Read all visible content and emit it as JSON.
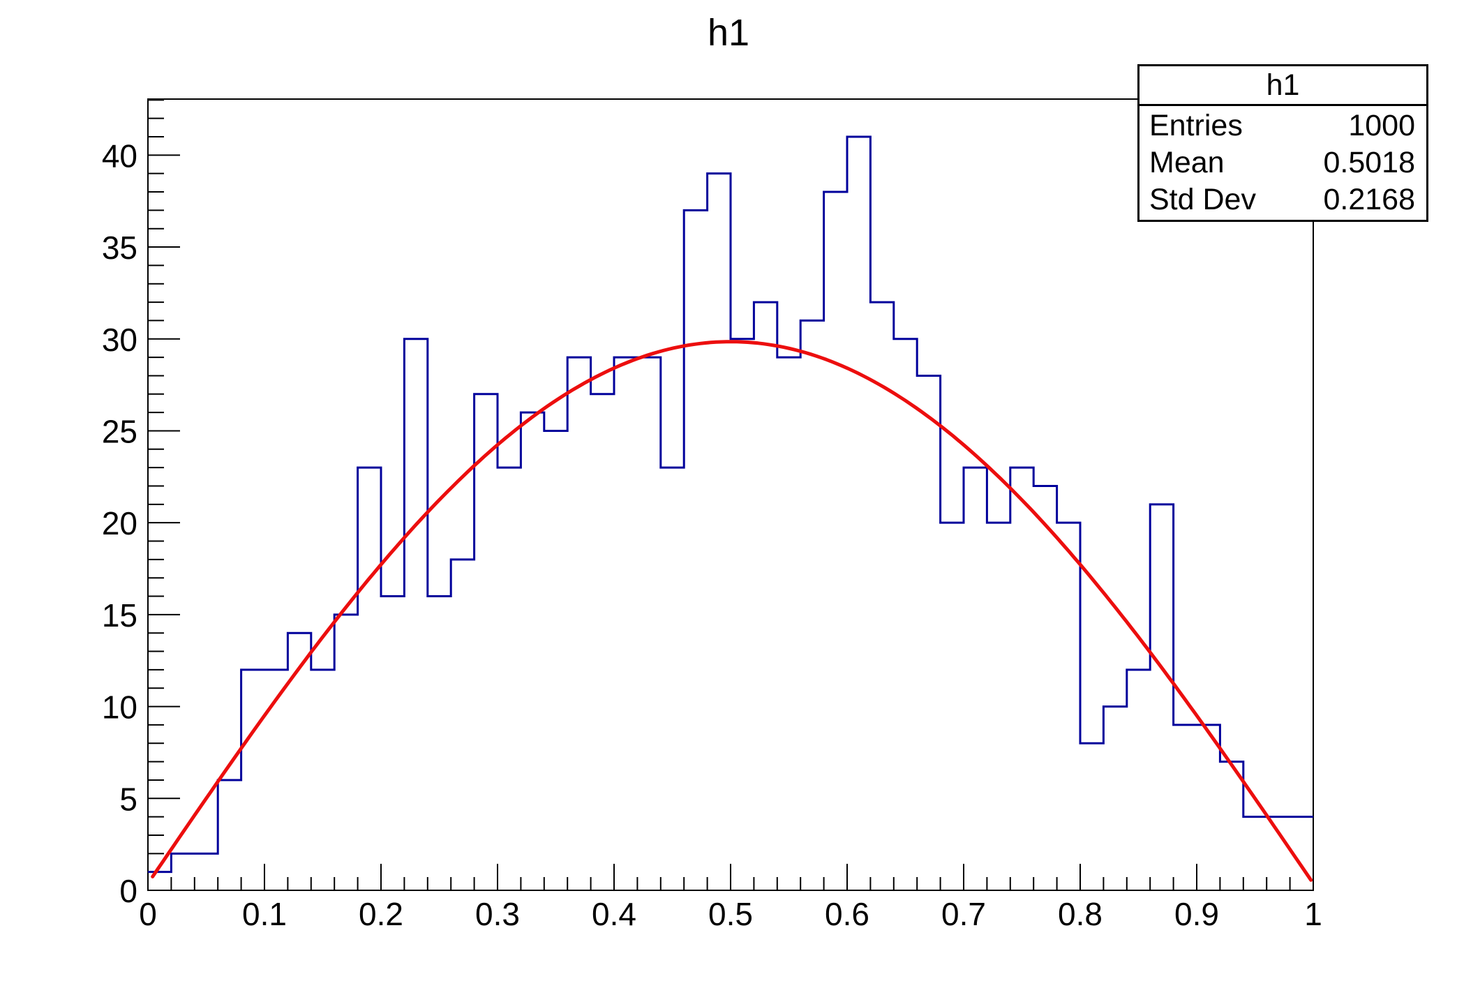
{
  "title": "h1",
  "stats": {
    "title": "h1",
    "rows": [
      {
        "label": "Entries",
        "value": "1000"
      },
      {
        "label": "Mean",
        "value": "0.5018"
      },
      {
        "label": "Std Dev",
        "value": "0.2168"
      }
    ]
  },
  "chart_data": {
    "type": "bar",
    "subtype": "histogram-step-outline",
    "title": "h1",
    "xlabel": "",
    "ylabel": "",
    "grid": false,
    "legend": "none",
    "xlim": [
      0,
      1
    ],
    "ylim": [
      0,
      43.05
    ],
    "bin_start": 0,
    "bin_width": 0.02,
    "values": [
      1,
      2,
      2,
      6,
      12,
      12,
      14,
      12,
      15,
      23,
      16,
      30,
      16,
      18,
      27,
      23,
      26,
      25,
      29,
      27,
      29,
      29,
      23,
      37,
      39,
      30,
      32,
      29,
      31,
      38,
      41,
      32,
      30,
      28,
      20,
      23,
      20,
      23,
      22,
      20,
      8,
      10,
      12,
      21,
      9,
      9,
      7,
      4,
      4,
      4
    ],
    "x_tick_labels": [
      "0",
      "0.1",
      "0.2",
      "0.3",
      "0.4",
      "0.5",
      "0.6",
      "0.7",
      "0.8",
      "0.9",
      "1"
    ],
    "x_tick_values": [
      0,
      0.1,
      0.2,
      0.3,
      0.4,
      0.5,
      0.6,
      0.7,
      0.8,
      0.9,
      1
    ],
    "x_minor_step": 0.02,
    "y_tick_values": [
      0,
      5,
      10,
      15,
      20,
      25,
      30,
      35,
      40
    ],
    "y_minor_step": 1,
    "fit_curve": {
      "type": "sine",
      "formula": "A*sin(pi*(x+x0)/T)",
      "amplitude": 29.85,
      "x0": 0.004,
      "period": 1.008,
      "x_range": [
        0.004,
        0.998
      ],
      "peak_value": 29.85,
      "peak_x": 0.5
    },
    "colors": {
      "histogram": "#00009B",
      "fit": "#EC0E0E",
      "frame": "#000000",
      "background": "#FFFFFF",
      "text": "#000000"
    }
  }
}
